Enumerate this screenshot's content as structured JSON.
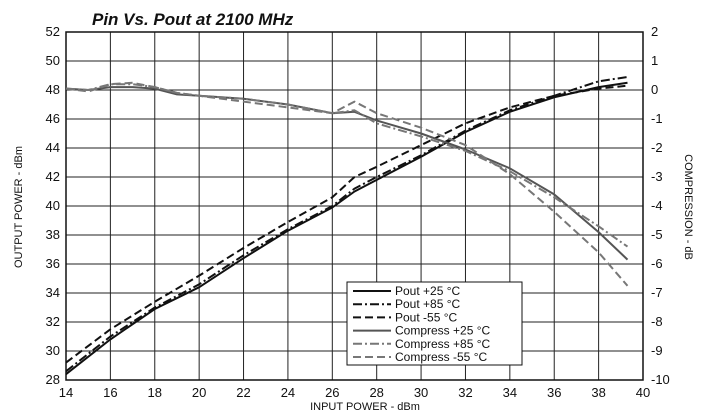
{
  "chart_data": {
    "type": "line",
    "title": "Pin Vs. Pout at 2100 MHz",
    "xlabel": "INPUT POWER - dBm",
    "ylabel_left": "OUTPUT POWER - dBm",
    "ylabel_right": "COMPRESSION - dB",
    "xlim": [
      14,
      40
    ],
    "ylim_left": [
      28,
      52
    ],
    "ylim_right": [
      -10,
      2
    ],
    "x_ticks": [
      14,
      16,
      18,
      20,
      22,
      24,
      26,
      28,
      30,
      32,
      34,
      36,
      38,
      40
    ],
    "y_ticks_left": [
      28,
      30,
      32,
      34,
      36,
      38,
      40,
      42,
      44,
      46,
      48,
      50,
      52
    ],
    "y_ticks_right": [
      2,
      1,
      0,
      -1,
      -2,
      -3,
      -4,
      -5,
      -6,
      -7,
      -8,
      -9,
      -10
    ],
    "grid": true,
    "legend_position": "bottom-right",
    "series": [
      {
        "name": "Pout +25 °C",
        "axis": "left",
        "color": "#111111",
        "dash": "solid",
        "x": [
          14,
          16,
          18,
          20,
          22,
          24,
          26,
          27,
          28,
          30,
          32,
          34,
          36,
          38,
          39.3
        ],
        "y": [
          28.4,
          30.8,
          32.9,
          34.4,
          36.4,
          38.3,
          39.9,
          41.0,
          41.8,
          43.4,
          45.1,
          46.5,
          47.5,
          48.2,
          48.5
        ]
      },
      {
        "name": "Pout +85 °C",
        "axis": "left",
        "color": "#111111",
        "dash": "dashdot",
        "x": [
          14,
          16,
          18,
          20,
          22,
          24,
          26,
          27,
          28,
          30,
          32,
          34,
          36,
          38,
          39.3
        ],
        "y": [
          28.6,
          31.0,
          33.0,
          34.6,
          36.6,
          38.4,
          40.0,
          41.2,
          42.0,
          43.5,
          45.2,
          46.6,
          47.6,
          48.6,
          48.9
        ]
      },
      {
        "name": "Pout -55 °C",
        "axis": "left",
        "color": "#111111",
        "dash": "dash",
        "x": [
          14,
          16,
          18,
          20,
          22,
          24,
          26,
          27,
          28,
          30,
          32,
          34,
          36,
          38,
          39.3
        ],
        "y": [
          29.2,
          31.5,
          33.4,
          35.2,
          37.1,
          38.9,
          40.6,
          42.0,
          42.7,
          44.2,
          45.7,
          46.8,
          47.6,
          48.1,
          48.3
        ]
      },
      {
        "name": "Compress +25 °C",
        "axis": "right",
        "color": "#555555",
        "dash": "solid",
        "x": [
          14,
          15,
          16,
          17,
          18,
          19,
          20,
          22,
          24,
          26,
          27,
          28,
          30,
          32,
          34,
          36,
          38,
          39.3
        ],
        "y": [
          0.05,
          0.0,
          0.1,
          0.1,
          0.05,
          -0.15,
          -0.2,
          -0.3,
          -0.5,
          -0.8,
          -0.75,
          -1.05,
          -1.5,
          -2.05,
          -2.7,
          -3.6,
          -4.9,
          -5.85
        ]
      },
      {
        "name": "Compress +85 °C",
        "axis": "right",
        "color": "#777777",
        "dash": "dashdot",
        "x": [
          14,
          15,
          16,
          17,
          18,
          19,
          20,
          22,
          24,
          26,
          27,
          28,
          30,
          32,
          34,
          36,
          38,
          39.3
        ],
        "y": [
          0.05,
          0.0,
          0.2,
          0.2,
          0.1,
          -0.1,
          -0.2,
          -0.3,
          -0.5,
          -0.8,
          -0.7,
          -1.15,
          -1.6,
          -2.1,
          -2.8,
          -3.7,
          -4.7,
          -5.4
        ]
      },
      {
        "name": "Compress -55 °C",
        "axis": "right",
        "color": "#777777",
        "dash": "dash",
        "x": [
          14,
          15,
          16,
          17,
          18,
          19,
          20,
          22,
          24,
          26,
          27,
          28,
          30,
          32,
          34,
          36,
          38,
          39.3
        ],
        "y": [
          0.05,
          -0.05,
          0.2,
          0.25,
          0.1,
          -0.1,
          -0.2,
          -0.4,
          -0.6,
          -0.8,
          -0.4,
          -0.8,
          -1.3,
          -1.9,
          -2.9,
          -4.2,
          -5.6,
          -6.75
        ]
      }
    ]
  }
}
